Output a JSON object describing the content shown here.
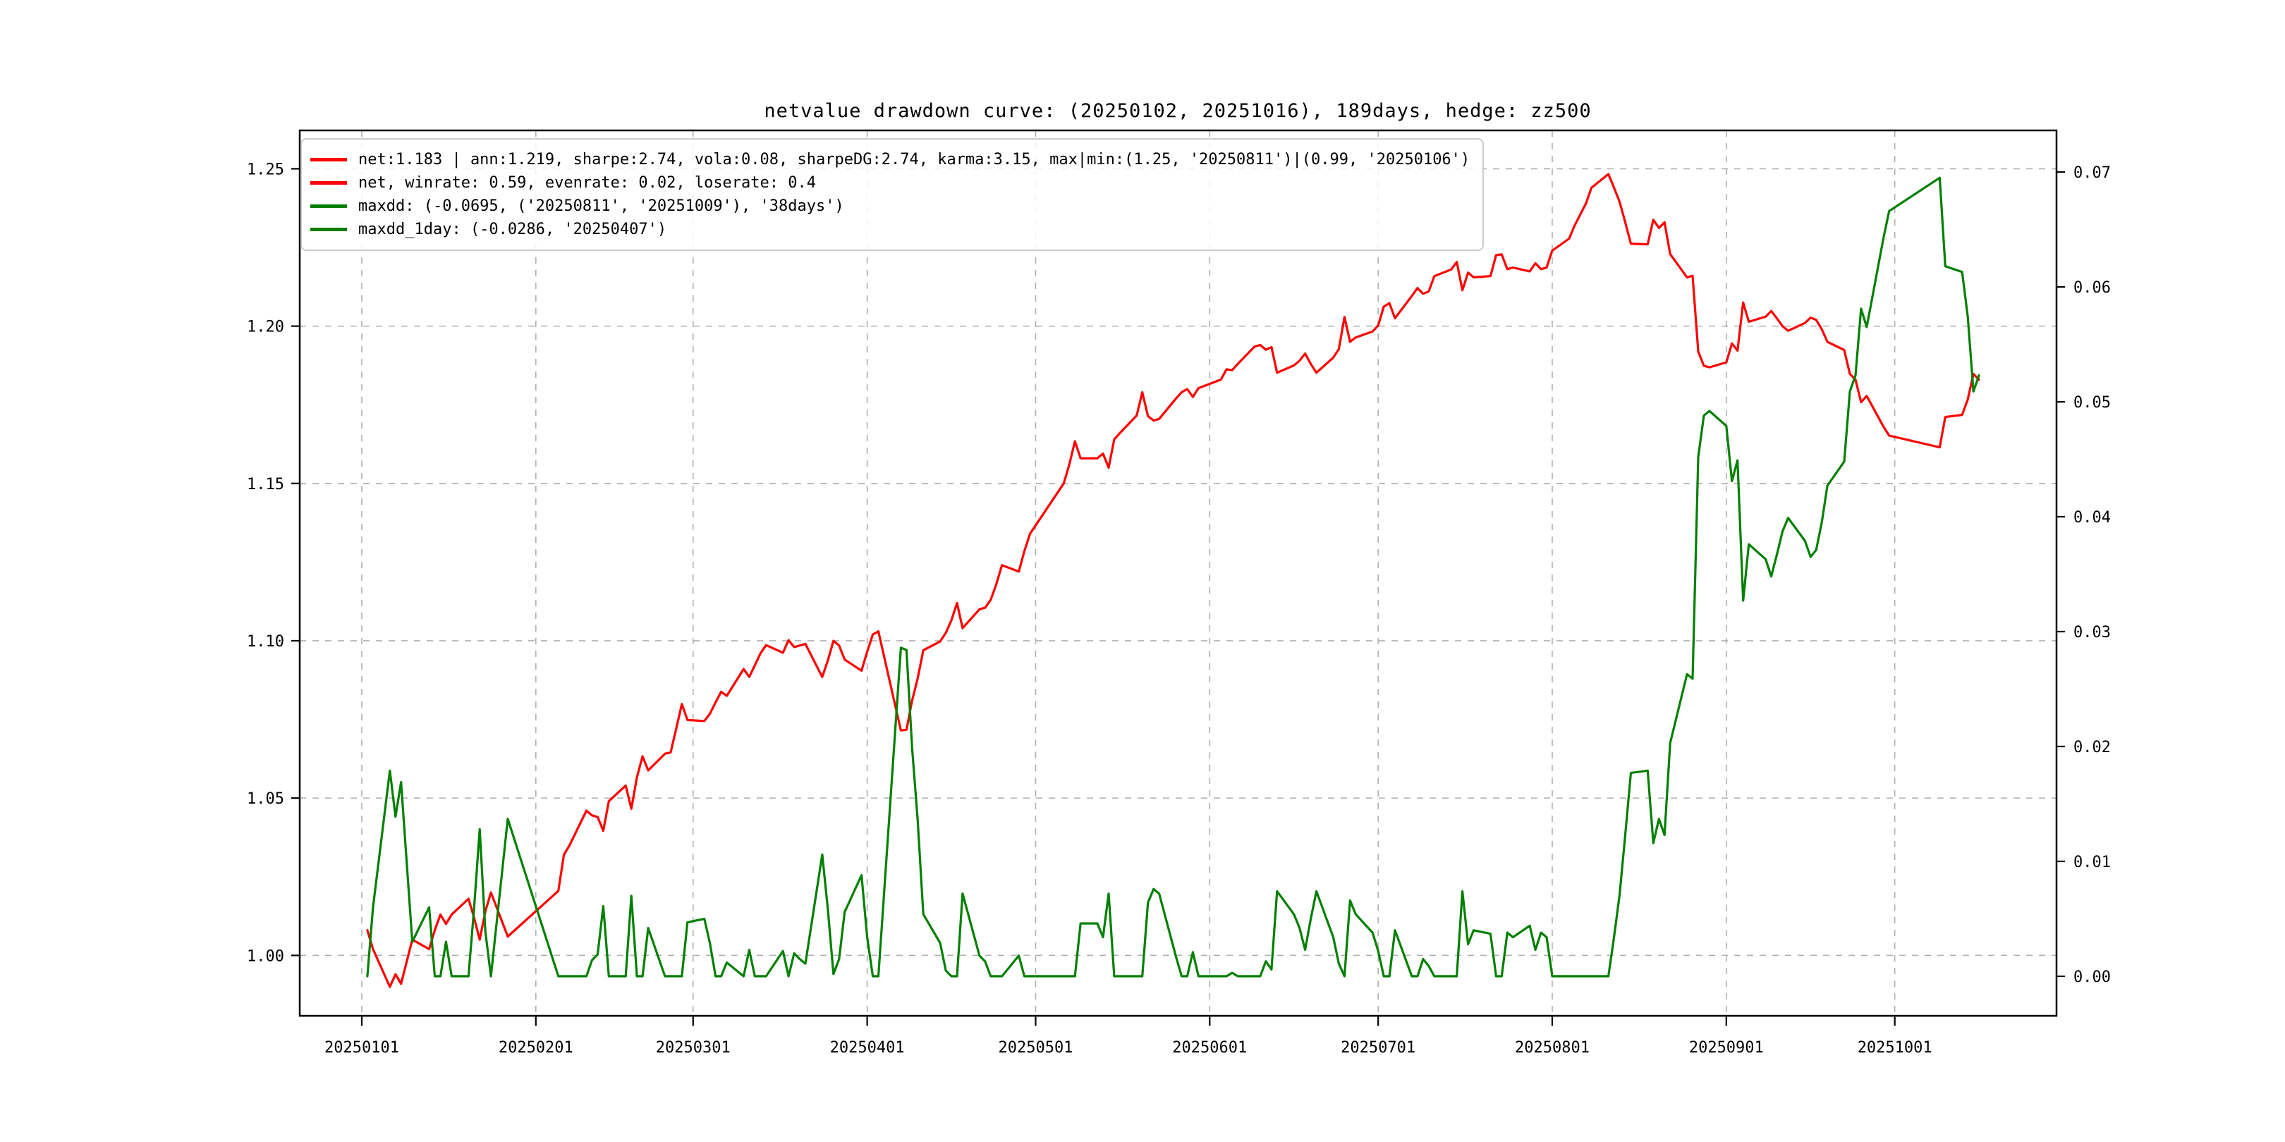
{
  "title": "netvalue drawdown curve: (20250102, 20251016), 189days, hedge: zz500",
  "colors": {
    "net": "#ff0000",
    "drawdown": "#008000",
    "grid": "#b0b0b0",
    "spine": "#000000",
    "background": "#ffffff"
  },
  "legend": {
    "position": "upper left",
    "entries": [
      {
        "label": "net:1.183 | ann:1.219, sharpe:2.74, vola:0.08, sharpeDG:2.74, karma:3.15, max|min:(1.25, '20250811')|(0.99, '20250106')",
        "color": "#ff0000"
      },
      {
        "label": "net, winrate: 0.59, evenrate: 0.02, loserate: 0.4",
        "color": "#ff0000"
      },
      {
        "label": "maxdd: (-0.0695, ('20250811', '20251009'), '38days')",
        "color": "#008000"
      },
      {
        "label": "maxdd_1day: (-0.0286, '20250407')",
        "color": "#008000"
      }
    ]
  },
  "axes": {
    "left": {
      "tick_values": [
        1.0,
        1.05,
        1.1,
        1.15,
        1.2,
        1.25
      ],
      "tick_labels": [
        "1.00",
        "1.05",
        "1.10",
        "1.15",
        "1.20",
        "1.25"
      ]
    },
    "right": {
      "tick_values": [
        0.0,
        0.01,
        0.02,
        0.03,
        0.04,
        0.05,
        0.06,
        0.07
      ],
      "tick_labels": [
        "0.00",
        "0.01",
        "0.02",
        "0.03",
        "0.04",
        "0.05",
        "0.06",
        "0.07"
      ]
    },
    "x": {
      "tick_dates": [
        "20250101",
        "20250201",
        "20250301",
        "20250401",
        "20250501",
        "20250601",
        "20250701",
        "20250801",
        "20250901",
        "20251001"
      ],
      "tick_labels": [
        "20250101",
        "20250201",
        "20250301",
        "20250401",
        "20250501",
        "20250601",
        "20250701",
        "20250801",
        "20250901",
        "20251001"
      ]
    }
  },
  "chart_data": {
    "type": "line",
    "title": "netvalue drawdown curve: (20250102, 20251016), 189days, hedge: zz500",
    "xlabel": "",
    "ylabel_left": "",
    "ylabel_right": "",
    "grid": true,
    "legend_position": "upper left",
    "ylim_left": [
      0.9808,
      1.2622
    ],
    "ylim_right": [
      -0.00344,
      0.07362
    ],
    "xlim_day_offsets_from_20250101": [
      -11.05,
      301.8
    ],
    "x_dates": [
      "20250102",
      "20250103",
      "20250106",
      "20250107",
      "20250108",
      "20250109",
      "20250110",
      "20250113",
      "20250114",
      "20250115",
      "20250116",
      "20250117",
      "20250120",
      "20250121",
      "20250122",
      "20250123",
      "20250124",
      "20250127",
      "20250205",
      "20250206",
      "20250207",
      "20250210",
      "20250211",
      "20250212",
      "20250213",
      "20250214",
      "20250217",
      "20250218",
      "20250219",
      "20250220",
      "20250221",
      "20250224",
      "20250225",
      "20250226",
      "20250227",
      "20250228",
      "20250303",
      "20250304",
      "20250305",
      "20250306",
      "20250307",
      "20250310",
      "20250311",
      "20250312",
      "20250313",
      "20250314",
      "20250317",
      "20250318",
      "20250319",
      "20250320",
      "20250321",
      "20250324",
      "20250325",
      "20250326",
      "20250327",
      "20250328",
      "20250331",
      "20250401",
      "20250402",
      "20250403",
      "20250407",
      "20250408",
      "20250409",
      "20250410",
      "20250411",
      "20250414",
      "20250415",
      "20250416",
      "20250417",
      "20250418",
      "20250421",
      "20250422",
      "20250423",
      "20250424",
      "20250425",
      "20250428",
      "20250429",
      "20250430",
      "20250506",
      "20250507",
      "20250508",
      "20250509",
      "20250512",
      "20250513",
      "20250514",
      "20250515",
      "20250516",
      "20250519",
      "20250520",
      "20250521",
      "20250522",
      "20250523",
      "20250526",
      "20250527",
      "20250528",
      "20250529",
      "20250530",
      "20250603",
      "20250604",
      "20250605",
      "20250606",
      "20250609",
      "20250610",
      "20250611",
      "20250612",
      "20250613",
      "20250616",
      "20250617",
      "20250618",
      "20250619",
      "20250620",
      "20250623",
      "20250624",
      "20250625",
      "20250626",
      "20250627",
      "20250630",
      "20250701",
      "20250702",
      "20250703",
      "20250704",
      "20250707",
      "20250708",
      "20250709",
      "20250710",
      "20250711",
      "20250714",
      "20250715",
      "20250716",
      "20250717",
      "20250718",
      "20250721",
      "20250722",
      "20250723",
      "20250724",
      "20250725",
      "20250728",
      "20250729",
      "20250730",
      "20250731",
      "20250801",
      "20250804",
      "20250805",
      "20250806",
      "20250807",
      "20250808",
      "20250811",
      "20250812",
      "20250813",
      "20250814",
      "20250815",
      "20250818",
      "20250819",
      "20250820",
      "20250821",
      "20250822",
      "20250825",
      "20250826",
      "20250827",
      "20250828",
      "20250829",
      "20250901",
      "20250902",
      "20250903",
      "20250904",
      "20250905",
      "20250908",
      "20250909",
      "20250910",
      "20250911",
      "20250912",
      "20250915",
      "20250916",
      "20250917",
      "20250918",
      "20250919",
      "20250922",
      "20250923",
      "20250924",
      "20250925",
      "20250926",
      "20250929",
      "20250930",
      "20251009",
      "20251010",
      "20251013",
      "20251014",
      "20251015",
      "20251016"
    ],
    "series": [
      {
        "name": "net",
        "axis": "left",
        "color": "#ff0000",
        "values": [
          1.008,
          1.002,
          0.99,
          0.994,
          0.991,
          0.998,
          1.005,
          1.002,
          1.008,
          1.013,
          1.01,
          1.013,
          1.018,
          1.012,
          1.005,
          1.014,
          1.02,
          1.006,
          1.0205,
          1.032,
          1.035,
          1.046,
          1.0445,
          1.044,
          1.0396,
          1.049,
          1.054,
          1.0466,
          1.0566,
          1.0633,
          1.0588,
          1.0641,
          1.0645,
          1.0721,
          1.0799,
          1.0748,
          1.0745,
          1.0768,
          1.0804,
          1.0838,
          1.0825,
          1.091,
          1.0885,
          1.0922,
          1.096,
          1.0986,
          1.0962,
          1.1002,
          1.098,
          1.0985,
          1.099,
          1.0885,
          1.0938,
          1.1,
          1.0985,
          1.094,
          1.0905,
          1.0965,
          1.102,
          1.103,
          1.0715,
          1.0717,
          1.081,
          1.088,
          1.097,
          1.0998,
          1.1025,
          1.1065,
          1.112,
          1.104,
          1.11,
          1.1105,
          1.113,
          1.118,
          1.124,
          1.122,
          1.1285,
          1.134,
          1.15,
          1.156,
          1.1634,
          1.158,
          1.158,
          1.1595,
          1.155,
          1.164,
          1.166,
          1.1716,
          1.179,
          1.1714,
          1.17,
          1.1705,
          1.177,
          1.179,
          1.18,
          1.1775,
          1.1803,
          1.183,
          1.1863,
          1.186,
          1.188,
          1.1935,
          1.194,
          1.1925,
          1.1933,
          1.1852,
          1.1875,
          1.189,
          1.1913,
          1.188,
          1.1852,
          1.19,
          1.1927,
          1.2029,
          1.195,
          1.1964,
          1.1983,
          1.2002,
          1.2062,
          1.2073,
          1.2025,
          1.2096,
          1.2121,
          1.2103,
          1.211,
          1.2159,
          1.218,
          1.2204,
          1.2114,
          1.217,
          1.2155,
          1.2159,
          1.2226,
          1.2228,
          1.2181,
          1.2186,
          1.2174,
          1.22,
          1.2181,
          1.2186,
          1.224,
          1.2278,
          1.232,
          1.2355,
          1.239,
          1.244,
          1.2483,
          1.244,
          1.2395,
          1.233,
          1.2262,
          1.226,
          1.2338,
          1.2312,
          1.233,
          1.2229,
          1.2155,
          1.216,
          1.1919,
          1.1874,
          1.1869,
          1.1885,
          1.1945,
          1.1922,
          1.2075,
          1.2014,
          1.203,
          1.2048,
          1.2025,
          1.2,
          1.1985,
          1.201,
          1.2027,
          1.202,
          1.199,
          1.195,
          1.1924,
          1.1848,
          1.183,
          1.1758,
          1.1778,
          1.168,
          1.1652,
          1.1615,
          1.1711,
          1.1718,
          1.1767,
          1.1848,
          1.183
        ]
      },
      {
        "name": "maxdd",
        "axis": "right",
        "color": "#008000",
        "values": [
          0,
          0.006,
          0.0179,
          0.0139,
          0.0169,
          0.0099,
          0.003,
          0.006,
          0,
          0,
          0.003,
          0,
          0,
          0.0059,
          0.0128,
          0.0039,
          0,
          0.0137,
          0,
          0,
          0,
          0,
          0.0014,
          0.0019,
          0.0061,
          0,
          0,
          0.007,
          0,
          0,
          0.0042,
          0,
          0,
          0,
          0,
          0.0047,
          0.005,
          0.0029,
          0,
          0,
          0.0012,
          0,
          0.0023,
          0,
          0,
          0,
          0.0022,
          0,
          0.002,
          0.0015,
          0.0011,
          0.0106,
          0.0058,
          0.0002,
          0.0015,
          0.0056,
          0.0088,
          0.0034,
          0,
          0,
          0.0286,
          0.0284,
          0.0199,
          0.0136,
          0.0054,
          0.0029,
          0.0005,
          0,
          0,
          0.0072,
          0.0018,
          0.0013,
          0,
          0,
          0,
          0.0018,
          0,
          0,
          0,
          0,
          0,
          0.0046,
          0.0046,
          0.0034,
          0.0072,
          0,
          0,
          0,
          0,
          0.0064,
          0.0076,
          0.0072,
          0.0017,
          0,
          0,
          0.0021,
          0,
          0,
          0,
          0.0003,
          0,
          0,
          0,
          0.0013,
          0.0006,
          0.0074,
          0.0054,
          0.0042,
          0.0023,
          0.005,
          0.0074,
          0.0034,
          0.0011,
          0,
          0.0066,
          0.0054,
          0.0038,
          0.0022,
          0,
          0,
          0.004,
          0,
          0,
          0.0015,
          0.0009,
          0,
          0,
          0,
          0.0074,
          0.0028,
          0.004,
          0.0037,
          0,
          0,
          0.0038,
          0.0034,
          0.0044,
          0.0023,
          0.0038,
          0.0034,
          0,
          0,
          0,
          0,
          0,
          0,
          0,
          0.0034,
          0.0071,
          0.0123,
          0.0177,
          0.0179,
          0.0116,
          0.0137,
          0.0123,
          0.0203,
          0.0263,
          0.0259,
          0.0452,
          0.0488,
          0.0492,
          0.0479,
          0.0431,
          0.0449,
          0.0327,
          0.0376,
          0.0363,
          0.0348,
          0.0367,
          0.0387,
          0.0399,
          0.0379,
          0.0365,
          0.0371,
          0.0395,
          0.0427,
          0.0448,
          0.0509,
          0.0523,
          0.0581,
          0.0565,
          0.0643,
          0.0666,
          0.0695,
          0.0618,
          0.0613,
          0.0574,
          0.0509,
          0.0523
        ]
      }
    ],
    "annotations": {
      "net_final": 1.183,
      "net_max": [
        1.25,
        "20250811"
      ],
      "net_min": [
        0.99,
        "20250106"
      ],
      "maxdd": [
        -0.0695,
        "20250811",
        "20251009",
        "38days"
      ],
      "maxdd_1day": [
        -0.0286,
        "20250407"
      ]
    }
  }
}
